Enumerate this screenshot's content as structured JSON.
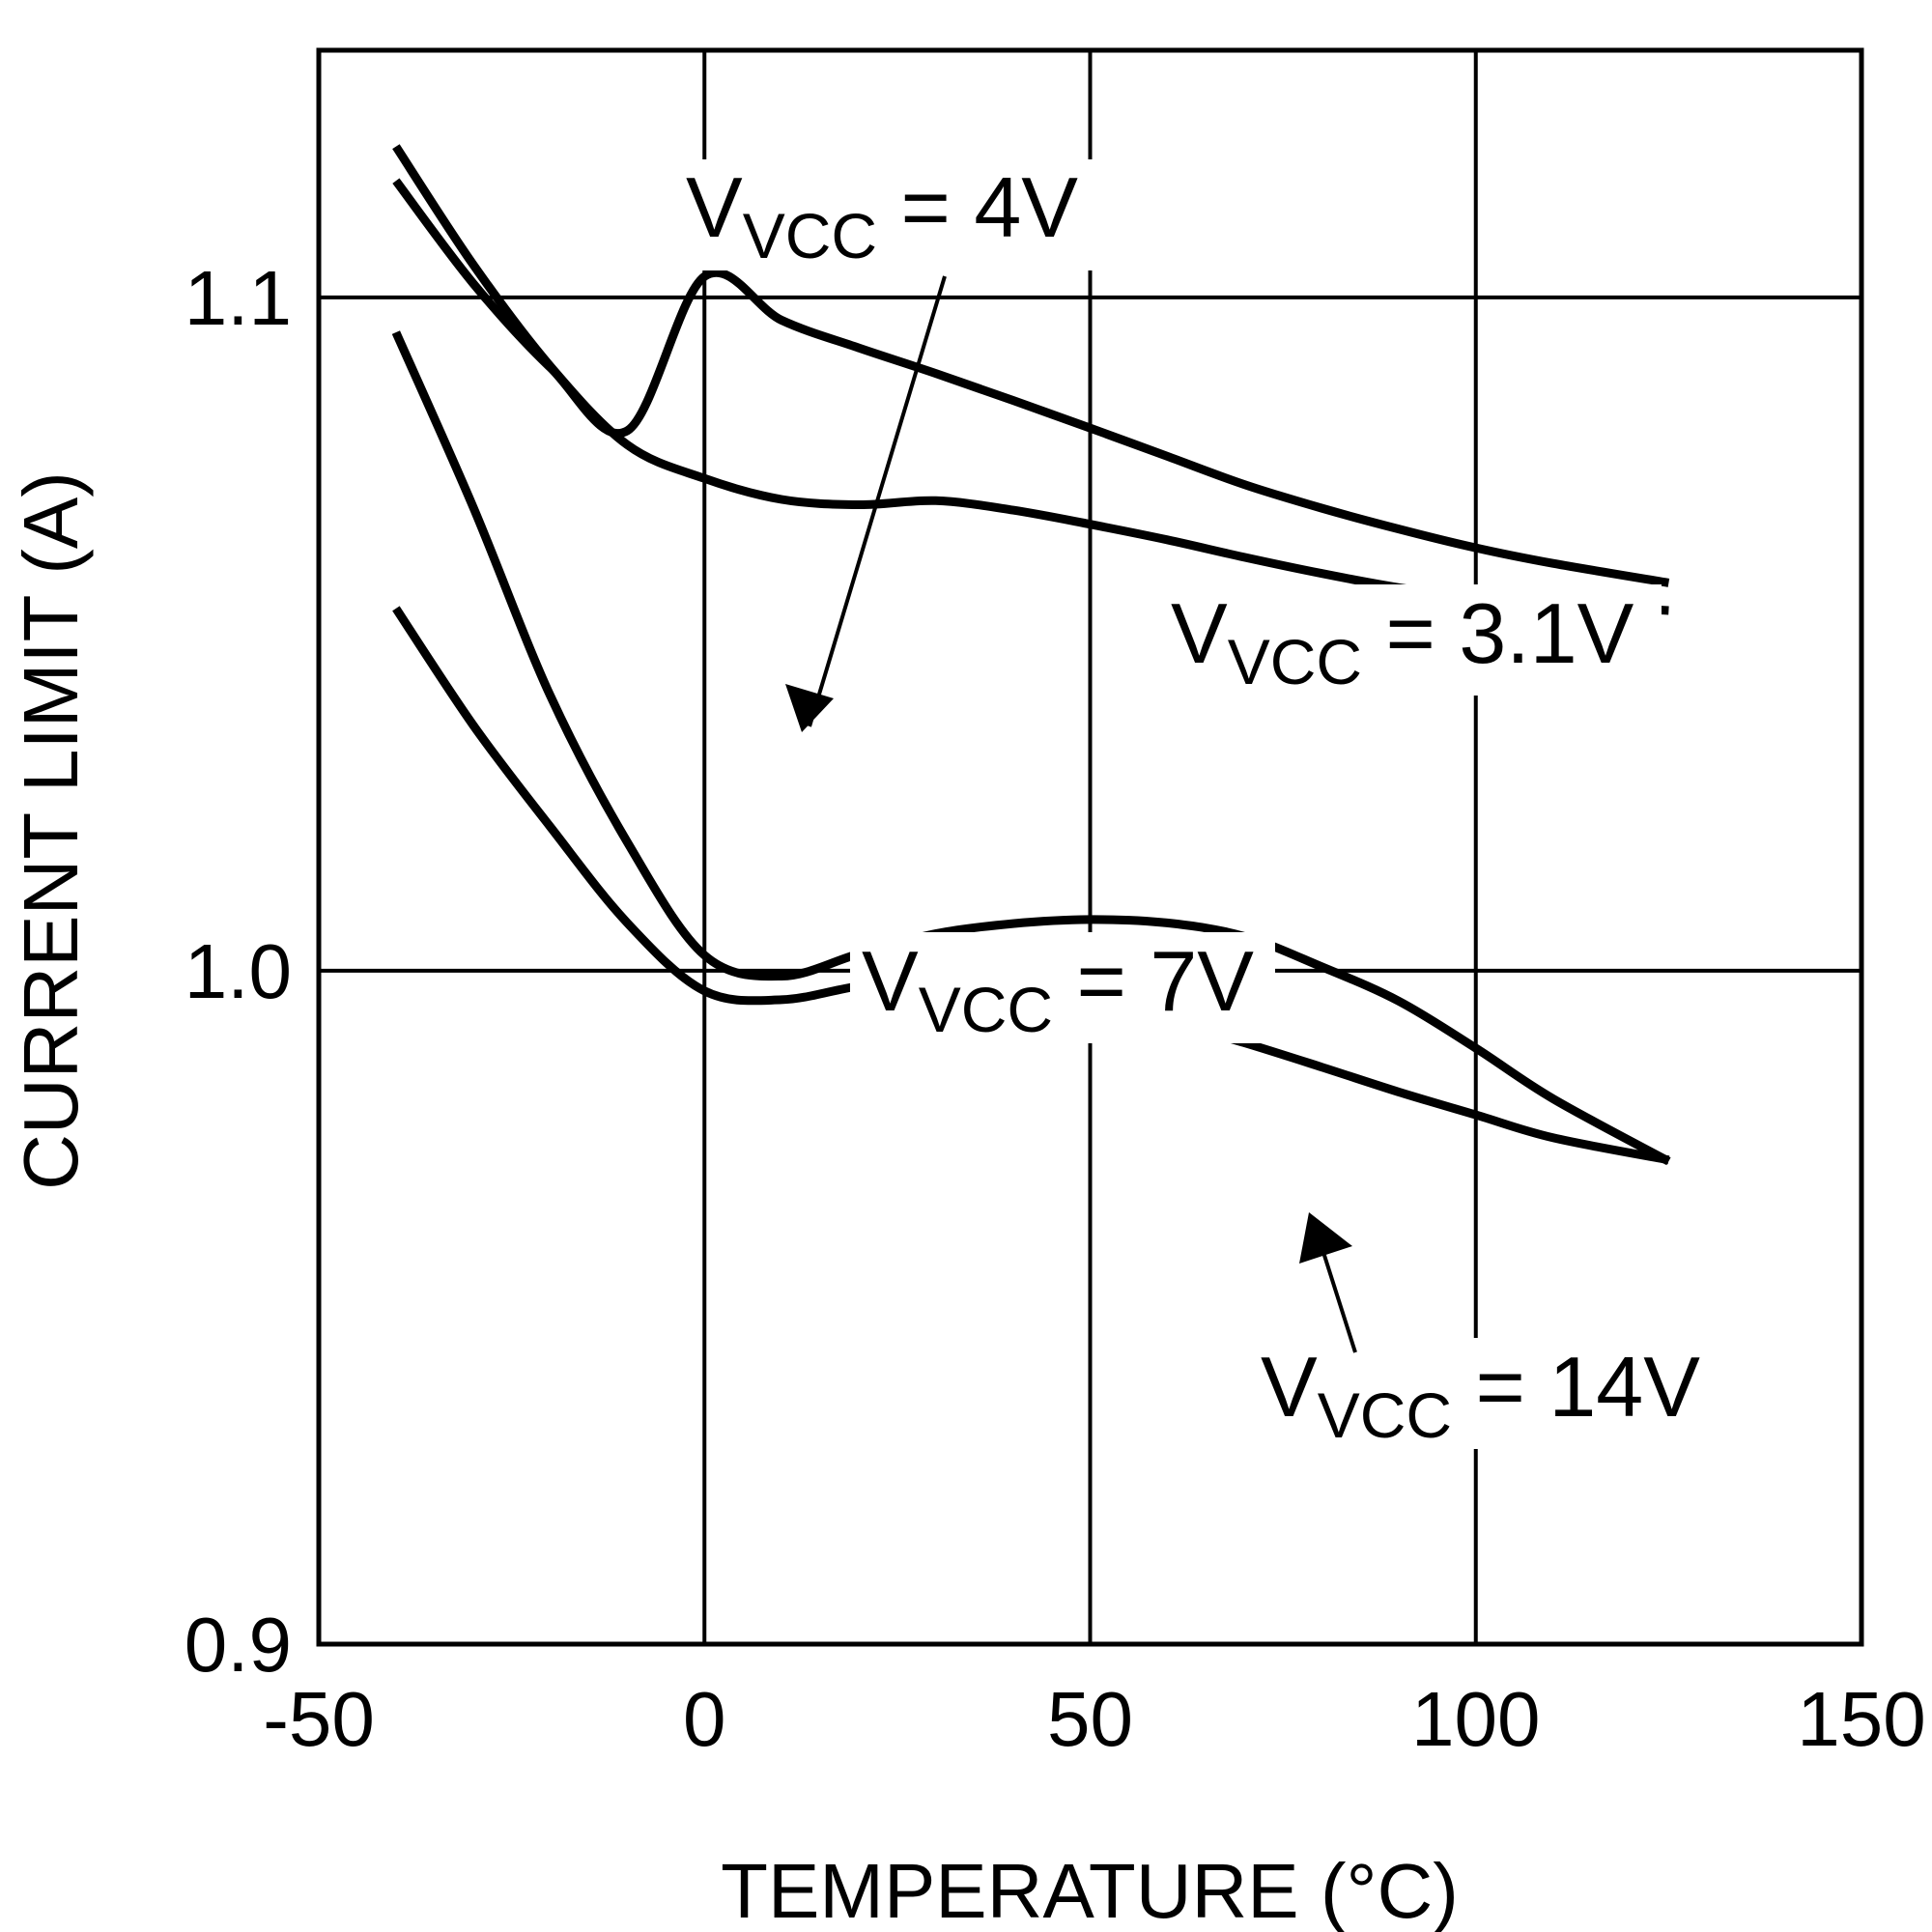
{
  "chart_data": {
    "type": "line",
    "title": "",
    "xlabel": "TEMPERATURE (°C)",
    "ylabel": "CURRENT LIMIT (A)",
    "xlim": [
      -50,
      150
    ],
    "ylim": [
      0.9,
      1.1367
    ],
    "x_ticks": [
      -50,
      0,
      50,
      100,
      150
    ],
    "x_tick_labels": [
      "-50",
      "0",
      "50",
      "100",
      "150"
    ],
    "y_ticks": [
      0.9,
      1.0,
      1.1
    ],
    "y_tick_labels": [
      "0.9",
      "1.0",
      "1.1"
    ],
    "grid": true,
    "legend": "none",
    "series": [
      {
        "name": "V_VCC = 3.1V",
        "label_main": "V",
        "label_sub": "VCC",
        "label_rest": " = 3.1V",
        "x": [
          -40,
          -30,
          -20,
          -10,
          0,
          10,
          20,
          30,
          40,
          50,
          60,
          70,
          80,
          90,
          100,
          110,
          125
        ],
        "y": [
          1.1173,
          1.1021,
          1.0896,
          1.0802,
          1.1031,
          1.0966,
          1.0925,
          1.0887,
          1.0847,
          1.0806,
          1.0764,
          1.0722,
          1.0687,
          1.0656,
          1.0628,
          1.0605,
          1.0576
        ]
      },
      {
        "name": "V_VCC = 4V",
        "label_main": "V",
        "label_sub": "VCC",
        "label_rest": " = 4V",
        "x": [
          -40,
          -30,
          -20,
          -10,
          0,
          10,
          20,
          30,
          40,
          50,
          60,
          70,
          80,
          90,
          100,
          110,
          125
        ],
        "y": [
          1.1224,
          1.1049,
          1.0898,
          1.0781,
          1.0731,
          1.07,
          1.0692,
          1.0698,
          1.0684,
          1.0663,
          1.064,
          1.0614,
          1.059,
          1.0569,
          1.0554,
          1.0545,
          1.0535
        ]
      },
      {
        "name": "V_VCC = 7V",
        "label_main": "V",
        "label_sub": "VCC",
        "label_rest": " = 7V",
        "x": [
          -40,
          -30,
          -20,
          -10,
          0,
          10,
          20,
          30,
          40,
          50,
          60,
          70,
          80,
          90,
          100,
          110,
          125
        ],
        "y": [
          1.0948,
          1.0689,
          1.0409,
          1.0191,
          1.0023,
          0.9992,
          1.0025,
          1.0055,
          1.007,
          1.0076,
          1.0071,
          1.0051,
          1.0006,
          0.9955,
          0.9885,
          0.981,
          0.9717
        ]
      },
      {
        "name": "V_VCC = 14V",
        "label_main": "V",
        "label_sub": "VCC",
        "label_rest": " = 14V",
        "x": [
          -40,
          -30,
          -20,
          -10,
          0,
          10,
          20,
          30,
          40,
          50,
          60,
          70,
          80,
          90,
          100,
          110,
          125
        ],
        "y": [
          1.0538,
          1.0365,
          1.0214,
          1.0071,
          0.997,
          0.9957,
          0.9977,
          0.9988,
          0.9984,
          0.9959,
          0.9926,
          0.9893,
          0.9857,
          0.982,
          0.9786,
          0.9752,
          0.9719
        ]
      }
    ],
    "annotations": [
      {
        "series": "V_VCC = 4V",
        "text_main": "V",
        "text_sub": "VCC",
        "text_rest": " = 4V",
        "arrow_to": [
          12,
          1.0715
        ]
      },
      {
        "series": "V_VCC = 3.1V",
        "text_main": "V",
        "text_sub": "VCC",
        "text_rest": " = 3.1V"
      },
      {
        "series": "V_VCC = 7V",
        "text_main": "V",
        "text_sub": "VCC",
        "text_rest": " = 7V"
      },
      {
        "series": "V_VCC = 14V",
        "text_main": "V",
        "text_sub": "VCC",
        "text_rest": " = 14V",
        "arrow_to": [
          80,
          0.9852
        ]
      }
    ],
    "colors": {
      "line": "#000000",
      "grid": "#000000",
      "background": "#ffffff"
    }
  }
}
